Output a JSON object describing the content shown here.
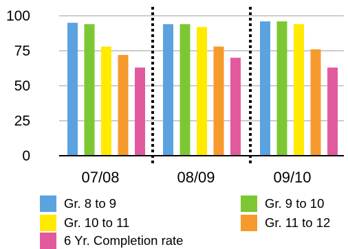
{
  "chart_data": {
    "type": "bar",
    "categories": [
      "07/08",
      "08/09",
      "09/10"
    ],
    "series": [
      {
        "name": "Gr. 8 to 9",
        "color": "#5ba3e0",
        "values": [
          95,
          94,
          96
        ]
      },
      {
        "name": "Gr. 9 to 10",
        "color": "#7dc832",
        "values": [
          94,
          94,
          96
        ]
      },
      {
        "name": "Gr. 10 to 11",
        "color": "#ffea00",
        "values": [
          78,
          92,
          94
        ]
      },
      {
        "name": "Gr. 11 to 12",
        "color": "#f79a2e",
        "values": [
          72,
          78,
          76
        ]
      },
      {
        "name": "6 Yr. Completion rate",
        "color": "#e25a9e",
        "values": [
          63,
          70,
          63
        ]
      }
    ],
    "yticks": [
      "100",
      "75",
      "50",
      "25",
      "0"
    ],
    "ylim": [
      0,
      100
    ],
    "title": "",
    "xlabel": "",
    "ylabel": "",
    "grid": true,
    "legend_position": "bottom",
    "separators": "dotted vertical lines between categories"
  }
}
